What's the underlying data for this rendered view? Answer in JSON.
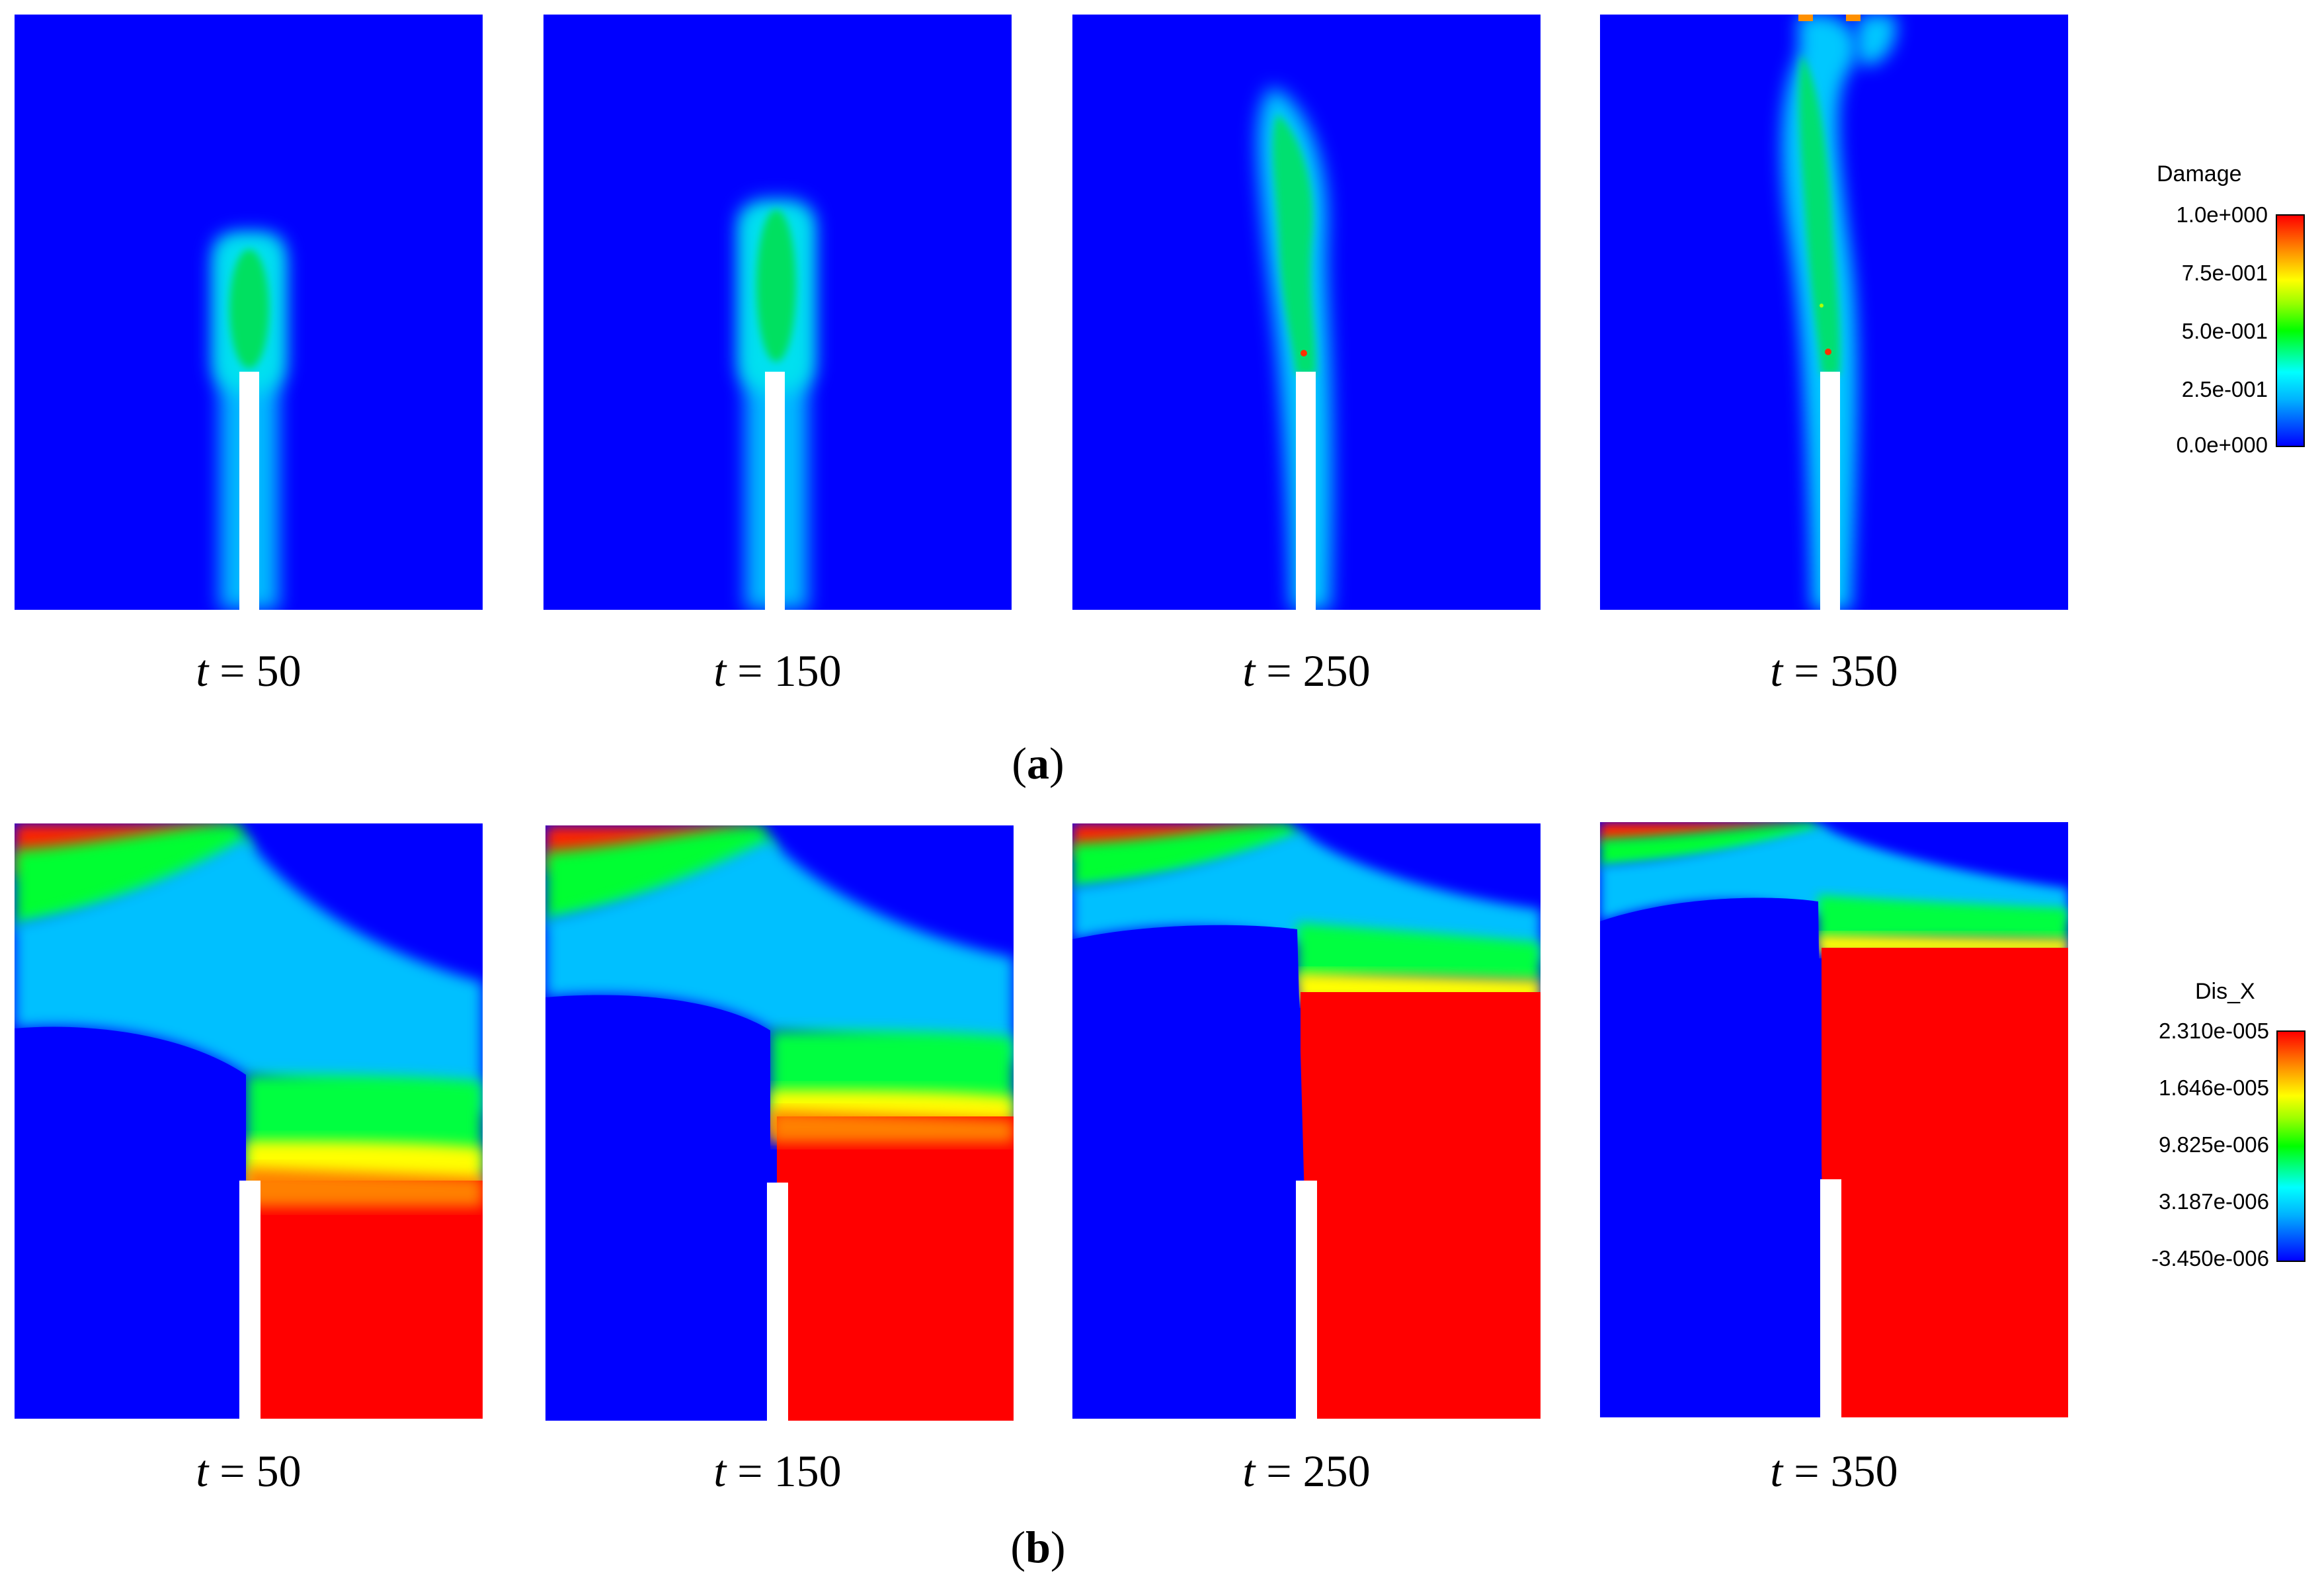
{
  "parts": {
    "a": {
      "letter": "a",
      "open": "(",
      "close": ")"
    },
    "b": {
      "letter": "b",
      "open": "(",
      "close": ")"
    }
  },
  "time_var": "t",
  "times": [
    "50",
    "150",
    "250",
    "350"
  ],
  "legend_damage": {
    "title": "Damage",
    "ticks": [
      "1.0e+000",
      "7.5e-001",
      "5.0e-001",
      "2.5e-001",
      "0.0e+000"
    ]
  },
  "legend_disx": {
    "title": "Dis_X",
    "ticks": [
      "2.310e-005",
      "1.646e-005",
      "9.825e-006",
      "3.187e-006",
      "-3.450e-006"
    ]
  },
  "colors": {
    "field_low": "#0000ff",
    "field_high": "#ff0000",
    "notch": "#ffffff"
  }
}
